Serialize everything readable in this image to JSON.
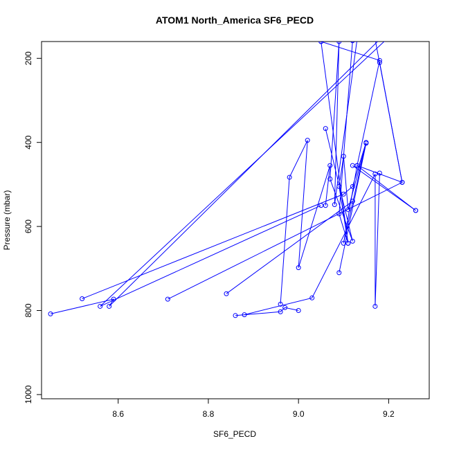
{
  "chart_data": {
    "type": "line",
    "title": "ATOM1 North_America SF6_PECD",
    "xlabel": "SF6_PECD",
    "ylabel": "Pressure (mbar)",
    "xlim": [
      8.43,
      9.29
    ],
    "ylim": [
      1010,
      160
    ],
    "y_reversed": true,
    "xticks": [
      8.6,
      8.8,
      9.0,
      9.2
    ],
    "xtick_labels": [
      "8.6",
      "8.8",
      "9.0",
      "9.2"
    ],
    "yticks": [
      200,
      400,
      600,
      800,
      1000
    ],
    "ytick_labels": [
      "200",
      "400",
      "600",
      "800",
      "1000"
    ],
    "grid": false,
    "legend": "none",
    "series_color": "#0000ff",
    "markers": "open-circle",
    "segments": [
      [
        [
          8.45,
          808
        ],
        [
          8.59,
          773
        ],
        [
          8.58,
          790
        ],
        [
          9.18,
          155
        ]
      ],
      [
        [
          8.52,
          772
        ],
        [
          9.1,
          523
        ],
        [
          9.12,
          505
        ],
        [
          9.15,
          400
        ],
        [
          9.1,
          640
        ],
        [
          9.13,
          455
        ],
        [
          9.18,
          205
        ],
        [
          9.05,
          160
        ]
      ],
      [
        [
          8.71,
          773
        ],
        [
          9.23,
          495
        ],
        [
          9.17,
          155
        ]
      ],
      [
        [
          8.84,
          760
        ],
        [
          9.12,
          540
        ]
      ],
      [
        [
          9.05,
          550
        ],
        [
          8.56,
          790
        ],
        [
          9.2,
          150
        ]
      ],
      [
        [
          9.26,
          562
        ],
        [
          9.12,
          455
        ]
      ],
      [
        [
          9.26,
          562
        ],
        [
          9.13,
          455
        ],
        [
          9.23,
          495
        ],
        [
          9.18,
          210
        ]
      ],
      [
        [
          8.96,
          785
        ],
        [
          8.98,
          483
        ],
        [
          9.02,
          395
        ],
        [
          9.0,
          698
        ],
        [
          9.07,
          455
        ],
        [
          9.06,
          550
        ]
      ],
      [
        [
          8.86,
          812
        ],
        [
          8.96,
          803
        ],
        [
          8.97,
          793
        ],
        [
          9.0,
          800
        ]
      ],
      [
        [
          8.88,
          810
        ],
        [
          9.03,
          770
        ],
        [
          9.17,
          475
        ],
        [
          9.17,
          790
        ],
        [
          9.18,
          473
        ]
      ],
      [
        [
          9.06,
          367
        ],
        [
          9.12,
          635
        ],
        [
          9.07,
          487
        ],
        [
          9.09,
          160
        ],
        [
          9.08,
          548
        ],
        [
          9.13,
          155
        ]
      ],
      [
        [
          9.09,
          710
        ],
        [
          9.15,
          402
        ],
        [
          9.11,
          560
        ],
        [
          9.1,
          433
        ],
        [
          9.09,
          505
        ],
        [
          9.11,
          640
        ],
        [
          9.05,
          160
        ]
      ],
      [
        [
          9.11,
          640
        ],
        [
          9.09,
          570
        ],
        [
          9.12,
          158
        ]
      ]
    ]
  }
}
